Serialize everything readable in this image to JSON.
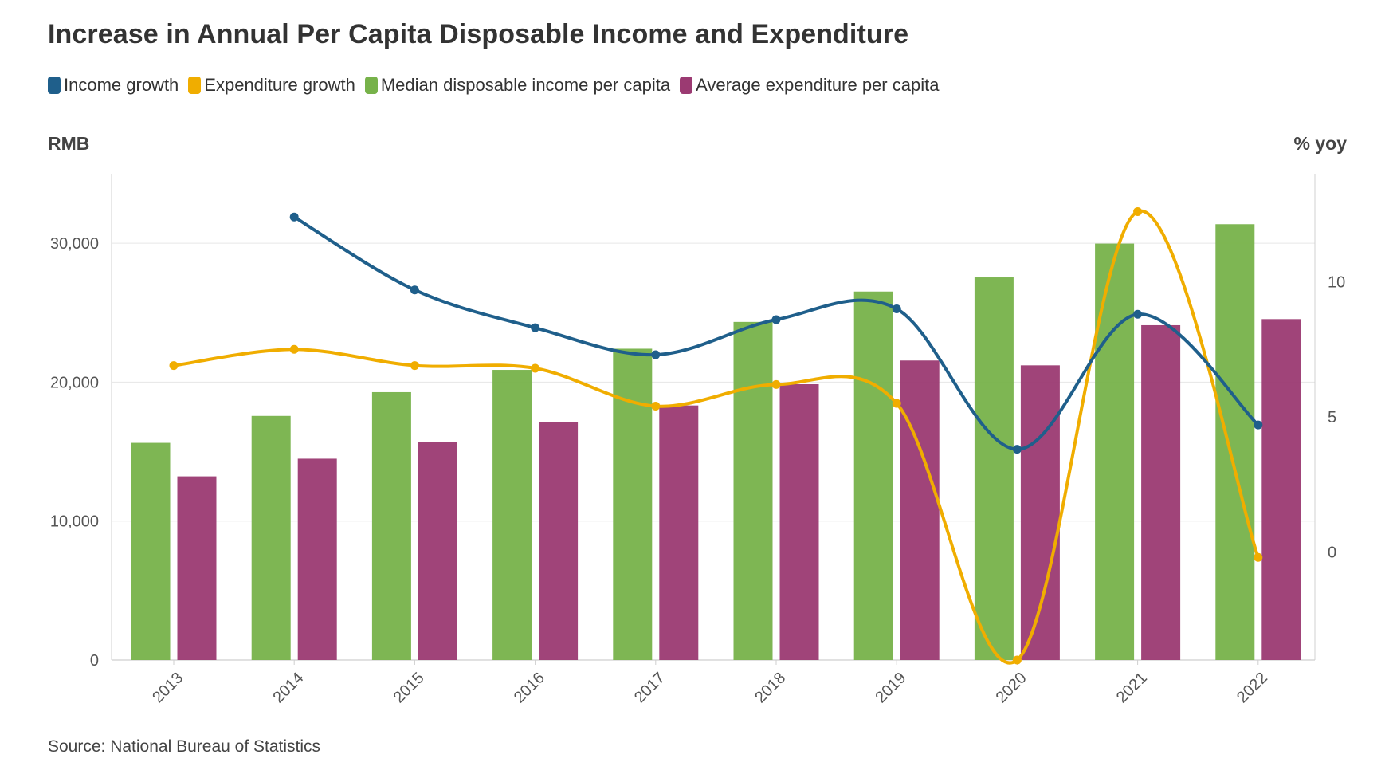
{
  "chart_data": {
    "type": "bar",
    "title": "Increase in Annual Per Capita Disposable Income and Expenditure",
    "source": "Source: National Bureau of Statistics",
    "categories": [
      "2013",
      "2014",
      "2015",
      "2016",
      "2017",
      "2018",
      "2019",
      "2020",
      "2021",
      "2022"
    ],
    "y_left": {
      "label": "RMB",
      "min": 0,
      "max": 35000,
      "ticks": [
        0,
        10000,
        20000,
        30000
      ],
      "tick_labels": [
        "0",
        "10,000",
        "20,000",
        "30,000"
      ]
    },
    "y_right": {
      "label": "% yoy",
      "min": -4,
      "max": 14,
      "ticks": [
        0,
        5,
        10
      ],
      "tick_labels": [
        "0",
        "5",
        "10"
      ]
    },
    "grid": true,
    "legend_position": "top-left",
    "series": [
      {
        "name": "Median disposable income per capita",
        "type": "bar",
        "axis": "left",
        "color": "#77b24a",
        "values": [
          15632,
          17570,
          19281,
          20883,
          22408,
          24336,
          26523,
          27540,
          29975,
          31370
        ]
      },
      {
        "name": "Average expenditure per capita",
        "type": "bar",
        "axis": "left",
        "color": "#9b3a72",
        "values": [
          13220,
          14491,
          15712,
          17111,
          18322,
          19853,
          21559,
          21210,
          24100,
          24538
        ]
      },
      {
        "name": "Income growth",
        "type": "line",
        "axis": "right",
        "color": "#1f5f8b",
        "values": [
          null,
          12.4,
          9.7,
          8.3,
          7.3,
          8.6,
          9.0,
          3.8,
          8.8,
          4.7
        ]
      },
      {
        "name": "Expenditure growth",
        "type": "line",
        "axis": "right",
        "color": "#f0ad00",
        "values": [
          6.9,
          7.5,
          6.9,
          6.8,
          5.4,
          6.2,
          5.5,
          -4.0,
          12.6,
          -0.2
        ]
      }
    ]
  }
}
